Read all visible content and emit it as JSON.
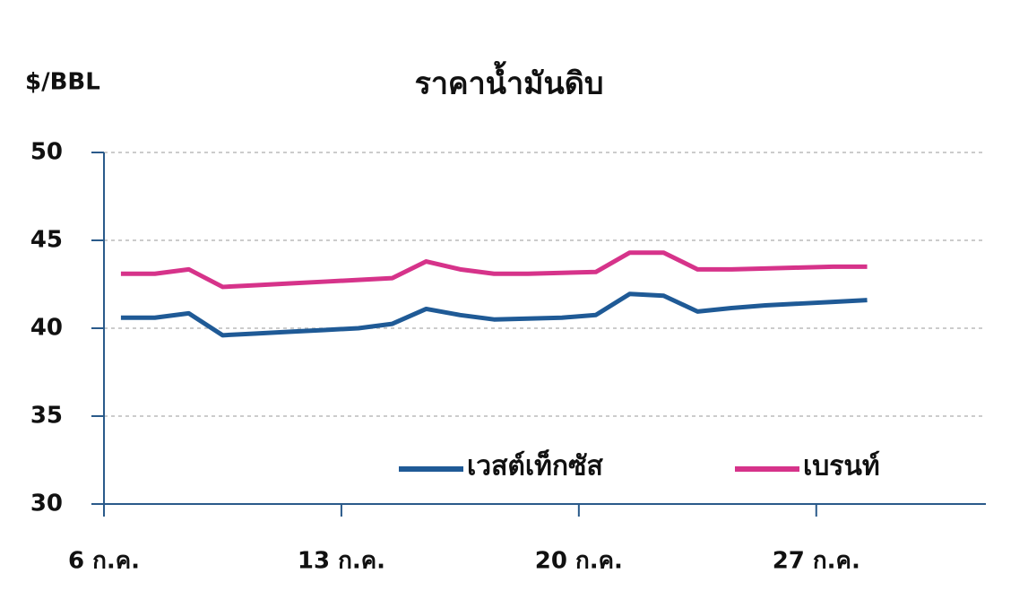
{
  "chart_data": {
    "type": "line",
    "title": "ราคาน้ำมันดิบ",
    "y_label": "$/BBL",
    "x": [
      6.5,
      7.5,
      8.5,
      9.5,
      10.5,
      11.5,
      12.5,
      13.5,
      14.5,
      15.5,
      16.5,
      17.5,
      18.5,
      19.5,
      20.5,
      21.5,
      22.5,
      23.5,
      24.5,
      25.5,
      26.5,
      27.5,
      28.5
    ],
    "xlim": [
      6,
      32
    ],
    "xticks": [
      {
        "value": 6,
        "label": "6 ก.ค."
      },
      {
        "value": 13,
        "label": "13 ก.ค."
      },
      {
        "value": 20,
        "label": "20 ก.ค."
      },
      {
        "value": 27,
        "label": "27 ก.ค."
      }
    ],
    "ylim": [
      30,
      50
    ],
    "yticks": [
      30,
      35,
      40,
      45,
      50
    ],
    "grid": true,
    "legend": "lower right",
    "series": [
      {
        "name": "เวสต์เท็กซัส",
        "color": "#1f5a96",
        "values": [
          40.6,
          40.6,
          40.85,
          39.6,
          39.7,
          39.8,
          39.9,
          40.0,
          40.25,
          41.1,
          40.75,
          40.5,
          40.55,
          40.6,
          40.75,
          41.95,
          41.85,
          40.95,
          41.15,
          41.3,
          41.4,
          41.5,
          41.6
        ]
      },
      {
        "name": "เบรนท์",
        "color": "#d6338a",
        "values": [
          43.1,
          43.1,
          43.35,
          42.35,
          42.45,
          42.55,
          42.65,
          42.75,
          42.85,
          43.8,
          43.35,
          43.1,
          43.1,
          43.15,
          43.2,
          44.3,
          44.3,
          43.35,
          43.35,
          43.4,
          43.45,
          43.5,
          43.5
        ]
      }
    ]
  }
}
